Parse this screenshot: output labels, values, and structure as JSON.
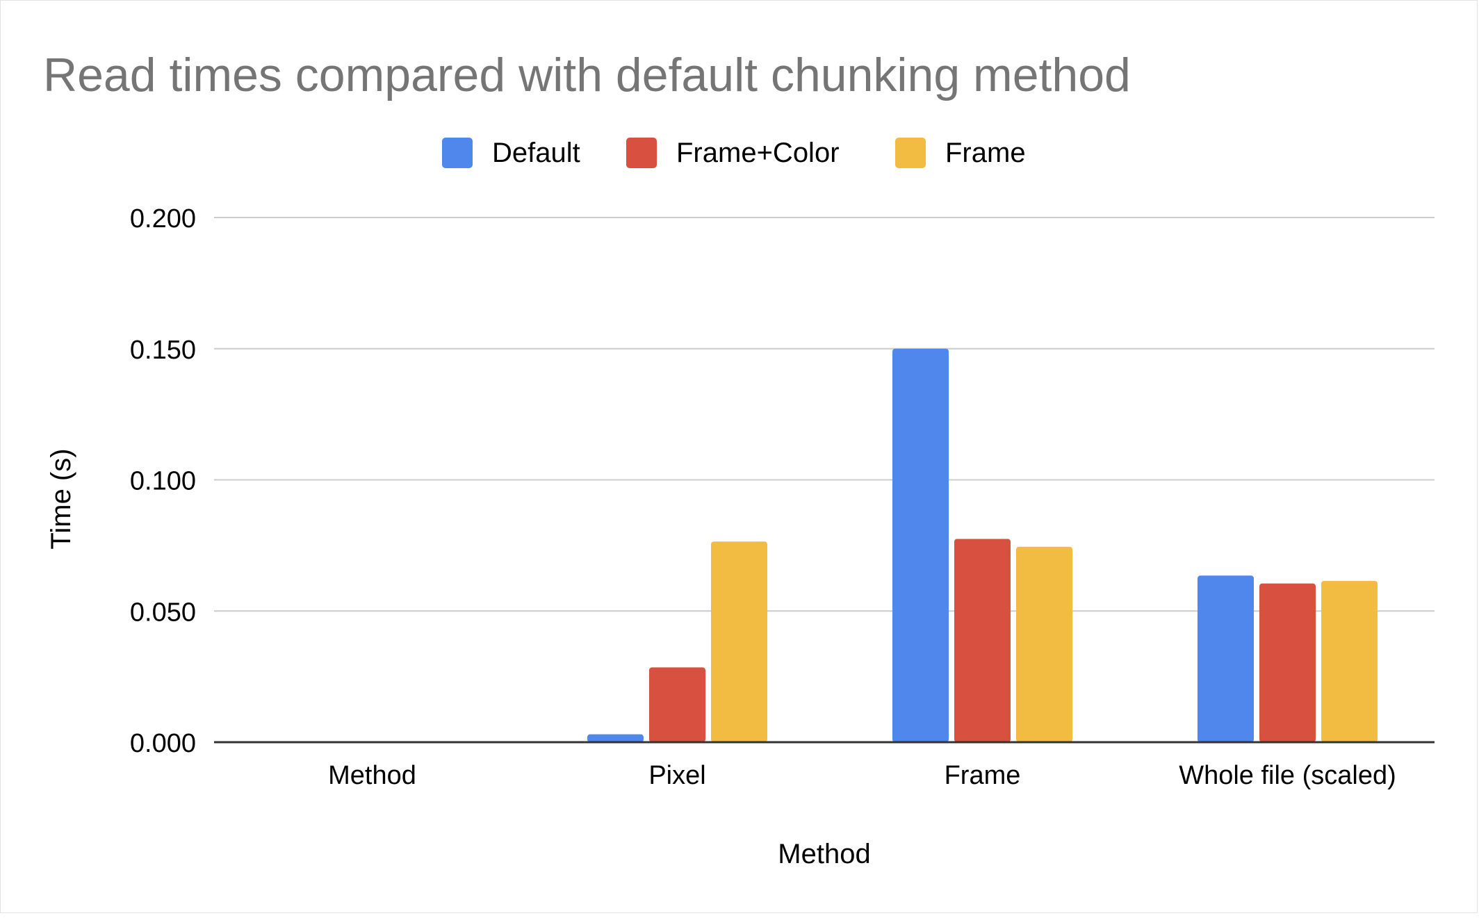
{
  "chart_data": {
    "type": "bar",
    "title": "Read times compared with default chunking method",
    "xlabel": "Method",
    "ylabel": "Time (s)",
    "categories": [
      "Method",
      "Pixel",
      "Frame",
      "Whole file (scaled)"
    ],
    "series": [
      {
        "name": "Default",
        "color": "#5087ec",
        "values": [
          null,
          0.003,
          0.15,
          0.0635
        ]
      },
      {
        "name": "Frame+Color",
        "color": "#d85040",
        "values": [
          null,
          0.0285,
          0.0775,
          0.0605
        ]
      },
      {
        "name": "Frame",
        "color": "#f2bc42",
        "values": [
          null,
          0.0765,
          0.0745,
          0.0615
        ]
      }
    ],
    "ylim": [
      0,
      0.2
    ],
    "yticks": [
      "0.000",
      "0.050",
      "0.100",
      "0.150",
      "0.200"
    ],
    "grid": true,
    "legend_position": "top-center",
    "colors": {
      "title": "#757575",
      "text": "#000000",
      "gridline": "#cccccc",
      "baseline": "#333333"
    }
  }
}
